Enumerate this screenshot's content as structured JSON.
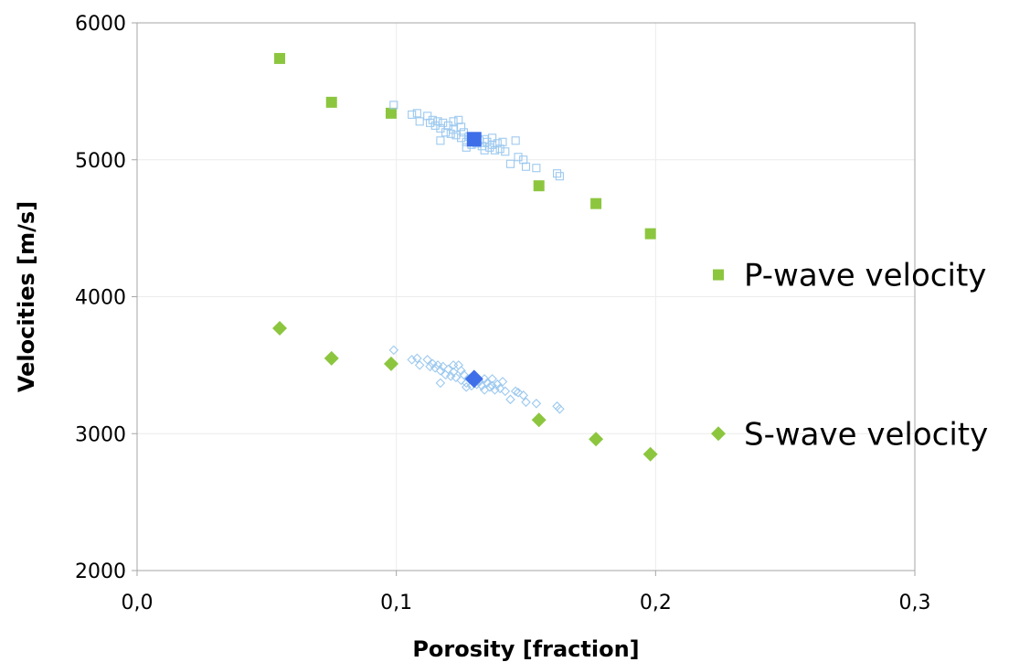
{
  "chart_data": {
    "type": "scatter",
    "title": "",
    "xlabel": "Porosity [fraction]",
    "ylabel": "Velocities [m/s]",
    "xlim": [
      0.0,
      0.3
    ],
    "ylim": [
      2000,
      6000
    ],
    "x_ticks": [
      0.0,
      0.1,
      0.2,
      0.3
    ],
    "x_tick_labels": [
      "0,0",
      "0,1",
      "0,2",
      "0,3"
    ],
    "y_ticks": [
      2000,
      3000,
      4000,
      5000,
      6000
    ],
    "y_tick_labels": [
      "2000",
      "3000",
      "4000",
      "5000",
      "6000"
    ],
    "grid": true,
    "legend_position": "right",
    "series": [
      {
        "name": "P-wave velocity",
        "marker": "square",
        "color": "#8cc63f",
        "in_legend": true,
        "points": [
          [
            0.055,
            5740
          ],
          [
            0.075,
            5420
          ],
          [
            0.098,
            5340
          ],
          [
            0.155,
            4810
          ],
          [
            0.177,
            4680
          ],
          [
            0.198,
            4460
          ]
        ]
      },
      {
        "name": "S-wave velocity",
        "marker": "diamond",
        "color": "#8cc63f",
        "in_legend": true,
        "points": [
          [
            0.055,
            3770
          ],
          [
            0.075,
            3550
          ],
          [
            0.098,
            3510
          ],
          [
            0.155,
            3100
          ],
          [
            0.177,
            2960
          ],
          [
            0.198,
            2850
          ]
        ]
      },
      {
        "marker": "open-square",
        "color": "#9dc9ef",
        "in_legend": false,
        "points": [
          [
            0.099,
            5400
          ],
          [
            0.106,
            5330
          ],
          [
            0.108,
            5340
          ],
          [
            0.109,
            5280
          ],
          [
            0.112,
            5320
          ],
          [
            0.113,
            5270
          ],
          [
            0.114,
            5290
          ],
          [
            0.115,
            5250
          ],
          [
            0.116,
            5280
          ],
          [
            0.117,
            5230
          ],
          [
            0.117,
            5140
          ],
          [
            0.118,
            5270
          ],
          [
            0.119,
            5200
          ],
          [
            0.12,
            5250
          ],
          [
            0.121,
            5190
          ],
          [
            0.122,
            5280
          ],
          [
            0.122,
            5220
          ],
          [
            0.123,
            5180
          ],
          [
            0.124,
            5290
          ],
          [
            0.125,
            5240
          ],
          [
            0.125,
            5160
          ],
          [
            0.126,
            5200
          ],
          [
            0.127,
            5130
          ],
          [
            0.127,
            5090
          ],
          [
            0.128,
            5170
          ],
          [
            0.129,
            5110
          ],
          [
            0.13,
            5160
          ],
          [
            0.131,
            5120
          ],
          [
            0.132,
            5140
          ],
          [
            0.133,
            5100
          ],
          [
            0.134,
            5150
          ],
          [
            0.134,
            5070
          ],
          [
            0.135,
            5130
          ],
          [
            0.136,
            5090
          ],
          [
            0.137,
            5160
          ],
          [
            0.137,
            5110
          ],
          [
            0.138,
            5070
          ],
          [
            0.139,
            5120
          ],
          [
            0.14,
            5080
          ],
          [
            0.141,
            5130
          ],
          [
            0.142,
            5060
          ],
          [
            0.144,
            4970
          ],
          [
            0.146,
            5140
          ],
          [
            0.147,
            5020
          ],
          [
            0.149,
            5000
          ],
          [
            0.15,
            4950
          ],
          [
            0.154,
            4940
          ],
          [
            0.162,
            4900
          ],
          [
            0.163,
            4880
          ]
        ]
      },
      {
        "marker": "open-diamond",
        "color": "#9dc9ef",
        "in_legend": false,
        "points": [
          [
            0.099,
            3610
          ],
          [
            0.106,
            3540
          ],
          [
            0.108,
            3550
          ],
          [
            0.109,
            3500
          ],
          [
            0.112,
            3540
          ],
          [
            0.113,
            3490
          ],
          [
            0.114,
            3510
          ],
          [
            0.115,
            3480
          ],
          [
            0.116,
            3500
          ],
          [
            0.117,
            3460
          ],
          [
            0.117,
            3370
          ],
          [
            0.118,
            3490
          ],
          [
            0.119,
            3430
          ],
          [
            0.12,
            3470
          ],
          [
            0.121,
            3420
          ],
          [
            0.122,
            3500
          ],
          [
            0.122,
            3450
          ],
          [
            0.123,
            3410
          ],
          [
            0.124,
            3500
          ],
          [
            0.125,
            3460
          ],
          [
            0.125,
            3390
          ],
          [
            0.126,
            3430
          ],
          [
            0.127,
            3370
          ],
          [
            0.127,
            3340
          ],
          [
            0.128,
            3400
          ],
          [
            0.129,
            3350
          ],
          [
            0.13,
            3390
          ],
          [
            0.131,
            3360
          ],
          [
            0.132,
            3380
          ],
          [
            0.133,
            3350
          ],
          [
            0.134,
            3400
          ],
          [
            0.134,
            3320
          ],
          [
            0.135,
            3370
          ],
          [
            0.136,
            3340
          ],
          [
            0.137,
            3400
          ],
          [
            0.137,
            3350
          ],
          [
            0.138,
            3320
          ],
          [
            0.139,
            3360
          ],
          [
            0.14,
            3330
          ],
          [
            0.141,
            3380
          ],
          [
            0.142,
            3310
          ],
          [
            0.144,
            3250
          ],
          [
            0.146,
            3310
          ],
          [
            0.147,
            3300
          ],
          [
            0.149,
            3280
          ],
          [
            0.15,
            3230
          ],
          [
            0.154,
            3220
          ],
          [
            0.162,
            3200
          ],
          [
            0.163,
            3180
          ]
        ]
      },
      {
        "marker": "square",
        "color": "#3f6fe8",
        "in_legend": false,
        "points": [
          [
            0.13,
            5150
          ]
        ]
      },
      {
        "marker": "diamond",
        "color": "#3f6fe8",
        "in_legend": false,
        "points": [
          [
            0.13,
            3400
          ]
        ]
      }
    ]
  }
}
